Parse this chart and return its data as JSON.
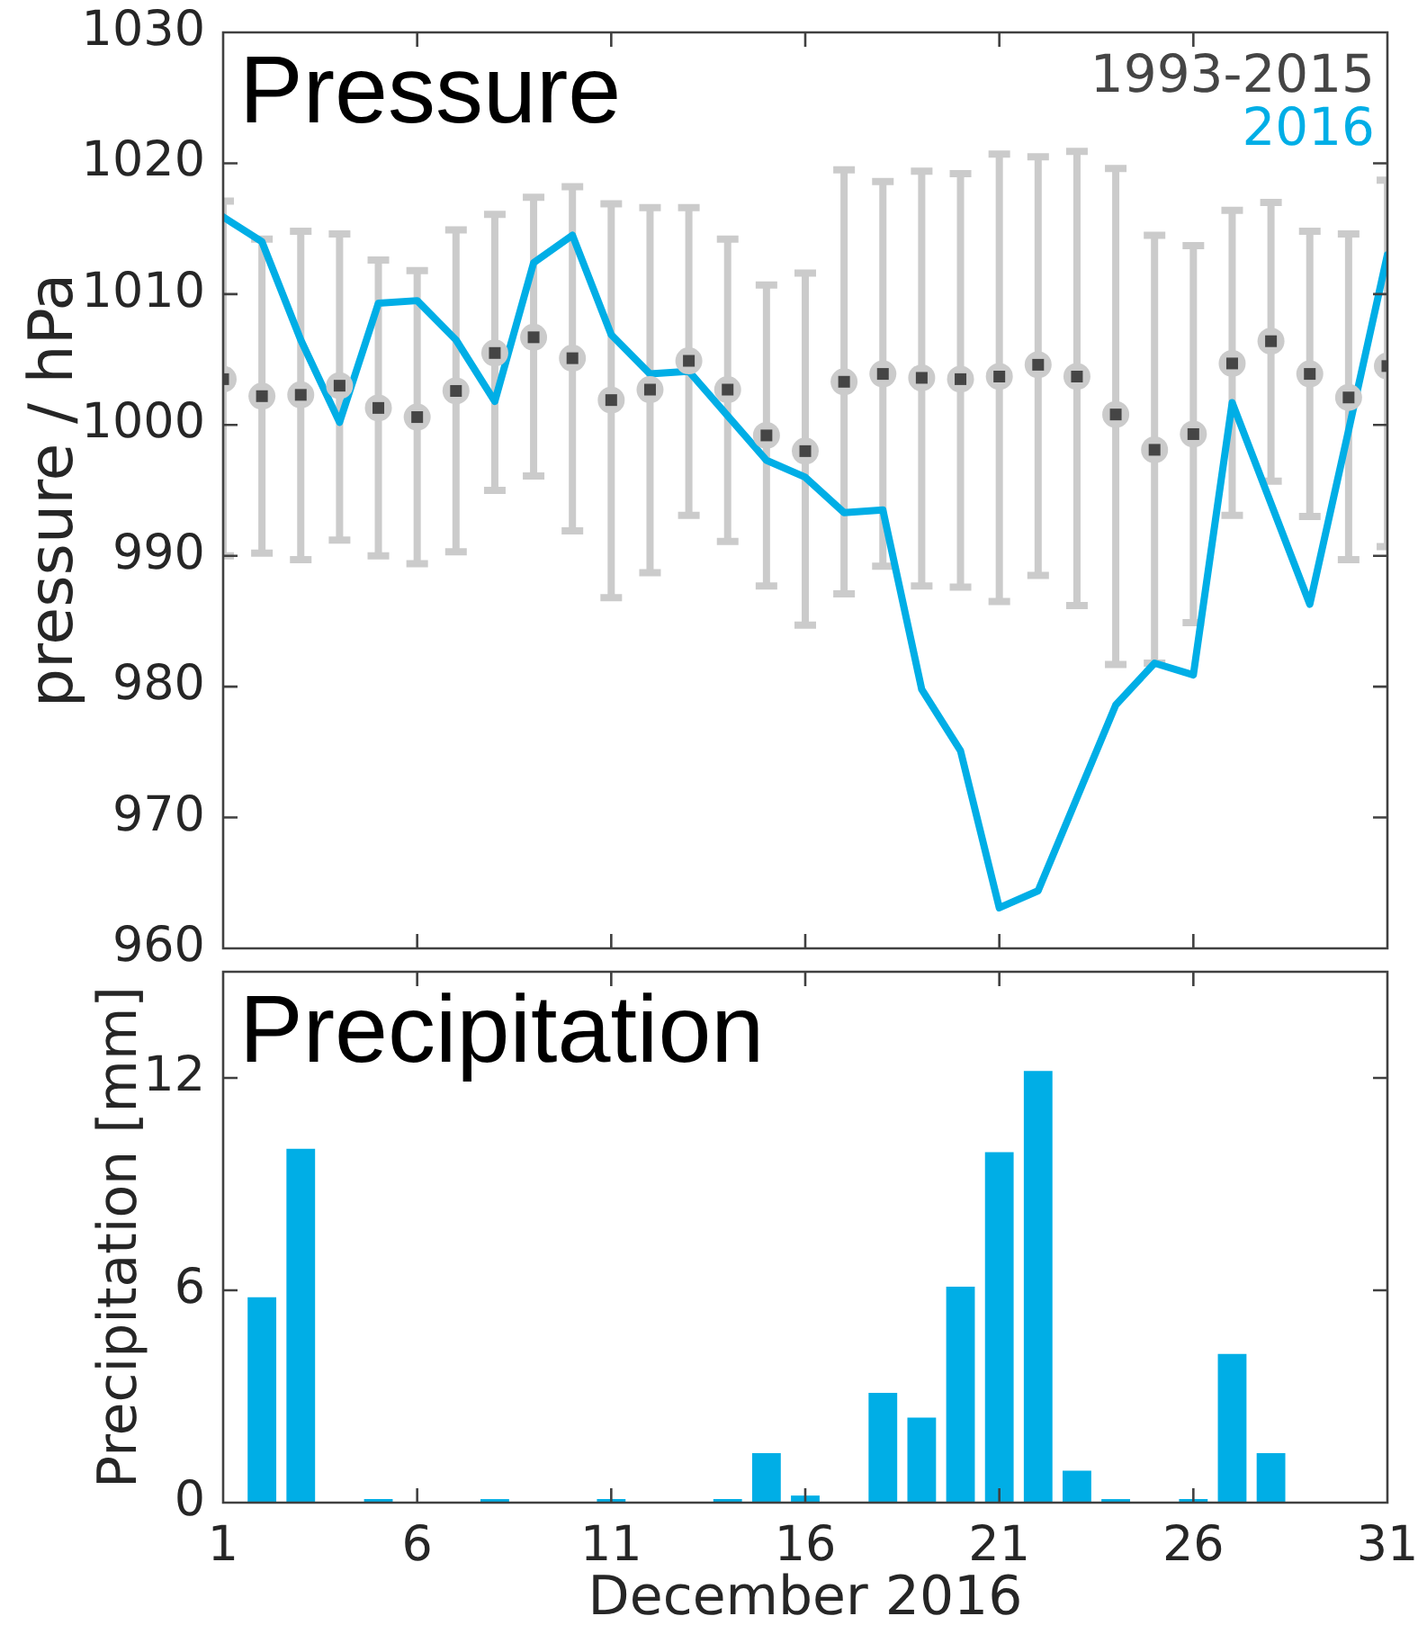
{
  "chart_data": [
    {
      "type": "line",
      "title": "Pressure",
      "ylabel": "pressure / hPa",
      "x": [
        1,
        2,
        3,
        4,
        5,
        6,
        7,
        8,
        9,
        10,
        11,
        12,
        13,
        14,
        15,
        16,
        17,
        18,
        19,
        20,
        21,
        22,
        23,
        24,
        25,
        26,
        27,
        28,
        29,
        30,
        31
      ],
      "series": [
        {
          "name": "1993-2015",
          "type": "scatter",
          "marker": "square",
          "color": "#454545",
          "values": [
            1003.5,
            1002.2,
            1002.3,
            1003.0,
            1001.3,
            1000.6,
            1002.6,
            1005.5,
            1006.7,
            1005.1,
            1001.9,
            1002.7,
            1004.9,
            1002.7,
            999.2,
            998.0,
            1003.3,
            1003.9,
            1003.6,
            1003.5,
            1003.7,
            1004.6,
            1003.7,
            1000.8,
            998.1,
            999.3,
            1004.7,
            1006.4,
            1003.9,
            1002.1,
            1004.5
          ],
          "errors": [
            [
              990.0,
              1017.1
            ],
            [
              990.2,
              1014.2
            ],
            [
              989.7,
              1014.8
            ],
            [
              991.2,
              1014.6
            ],
            [
              990.0,
              1012.6
            ],
            [
              989.4,
              1011.8
            ],
            [
              990.3,
              1014.9
            ],
            [
              995.0,
              1016.1
            ],
            [
              996.1,
              1017.4
            ],
            [
              991.9,
              1018.2
            ],
            [
              986.8,
              1016.9
            ],
            [
              988.7,
              1016.6
            ],
            [
              993.1,
              1016.6
            ],
            [
              991.1,
              1014.2
            ],
            [
              987.7,
              1010.7
            ],
            [
              984.7,
              1011.6
            ],
            [
              987.1,
              1019.5
            ],
            [
              989.2,
              1018.6
            ],
            [
              987.7,
              1019.4
            ],
            [
              987.6,
              1019.2
            ],
            [
              986.5,
              1020.7
            ],
            [
              988.5,
              1020.5
            ],
            [
              986.2,
              1020.9
            ],
            [
              981.7,
              1019.6
            ],
            [
              981.8,
              1014.5
            ],
            [
              984.9,
              1013.7
            ],
            [
              993.1,
              1016.4
            ],
            [
              995.7,
              1017.0
            ],
            [
              993.0,
              1014.8
            ],
            [
              989.7,
              1014.6
            ],
            [
              990.7,
              1018.7
            ]
          ]
        },
        {
          "name": "2016",
          "type": "line",
          "marker": "none",
          "color": "#00aee6",
          "values": [
            1015.9,
            1014.0,
            1006.5,
            1000.2,
            1009.3,
            1009.5,
            1006.5,
            1001.8,
            1012.4,
            1014.5,
            1006.9,
            1003.9,
            1004.1,
            1000.7,
            997.3,
            996.0,
            993.3,
            993.5,
            979.8,
            975.1,
            963.1,
            964.4,
            971.5,
            978.6,
            981.8,
            980.9,
            1001.7,
            994.0,
            986.3,
            999.6,
            1013.0
          ]
        }
      ],
      "xlim": [
        1,
        31
      ],
      "xticks": [
        1,
        6,
        11,
        16,
        21,
        26,
        31
      ],
      "ylim": [
        960,
        1030
      ],
      "yticks": [
        960,
        970,
        980,
        990,
        1000,
        1010,
        1020,
        1030
      ],
      "tick_labels": "y",
      "legend": "top right",
      "grid": false
    },
    {
      "type": "bar",
      "title": "Precipitation",
      "xlabel": "December 2016",
      "ylabel": "Precipitation [mm]",
      "x": [
        1,
        2,
        3,
        4,
        5,
        6,
        7,
        8,
        9,
        10,
        11,
        12,
        13,
        14,
        15,
        16,
        17,
        18,
        19,
        20,
        21,
        22,
        23,
        24,
        25,
        26,
        27,
        28,
        29,
        30,
        31
      ],
      "values": [
        0,
        5.8,
        10.0,
        0,
        0.1,
        0,
        0,
        0.1,
        0,
        0,
        0.1,
        0,
        0,
        0.1,
        1.4,
        0.2,
        0,
        3.1,
        2.4,
        6.1,
        9.9,
        12.2,
        0.9,
        0.1,
        0,
        0.1,
        4.2,
        1.4,
        0,
        0,
        0
      ],
      "color": "#00aee6",
      "xlim": [
        1,
        31
      ],
      "xticks": [
        1,
        6,
        11,
        16,
        21,
        26,
        31
      ],
      "ylim": [
        0,
        15
      ],
      "yticks": [
        0,
        6,
        12
      ],
      "grid": false
    }
  ]
}
